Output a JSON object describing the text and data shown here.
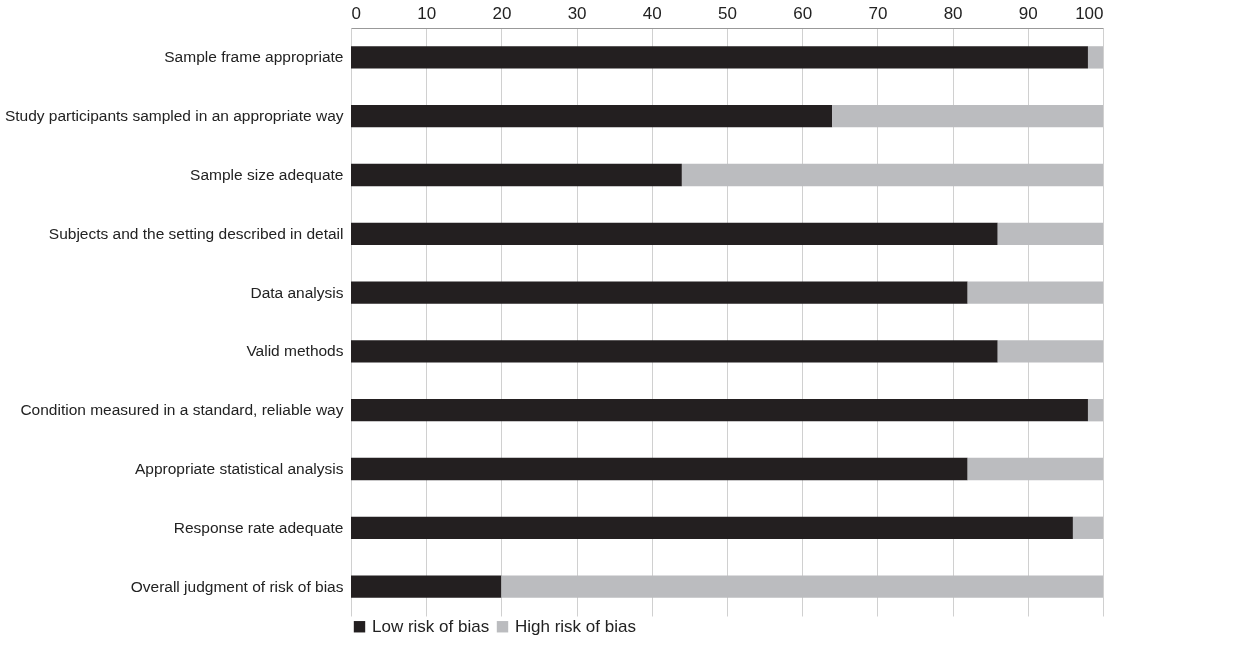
{
  "chart_data": {
    "type": "bar",
    "orientation": "horizontal",
    "stacked": true,
    "categories": [
      "Sample frame appropriate",
      "Study participants sampled in an appropriate way",
      "Sample size adequate",
      "Subjects and the setting described in detail",
      "Data analysis",
      "Valid methods",
      "Condition measured in a standard, reliable way",
      "Appropriate statistical analysis",
      "Response rate adequate",
      "Overall judgment of risk of bias"
    ],
    "series": [
      {
        "name": "Low risk of bias",
        "color": "#231f20",
        "values": [
          98,
          64,
          44,
          86,
          82,
          86,
          98,
          82,
          96,
          20
        ]
      },
      {
        "name": "High risk of bias",
        "color": "#bbbcbf",
        "values": [
          2,
          36,
          56,
          14,
          18,
          14,
          2,
          18,
          4,
          80
        ]
      }
    ],
    "xlim": [
      0,
      100
    ],
    "xticks": [
      0,
      10,
      20,
      30,
      40,
      50,
      60,
      70,
      80,
      90,
      100
    ],
    "grid": "x",
    "legend": "bottom"
  }
}
